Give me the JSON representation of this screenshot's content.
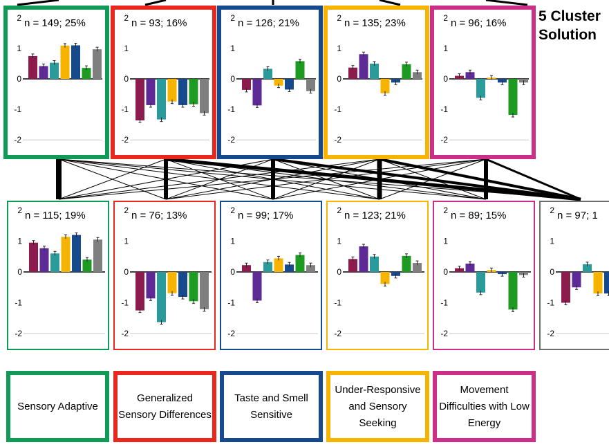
{
  "title": [
    "5 Cluster",
    "Solution"
  ],
  "colors": {
    "green": "#0f9a56",
    "red": "#e8281e",
    "blue": "#174a8c",
    "yellow": "#f6b400",
    "magenta": "#cc2f8a",
    "gray": "#6d6d6d"
  },
  "legend": [
    {
      "color": "green",
      "text": "Sensory Adaptive"
    },
    {
      "color": "red",
      "text": "Generalized Sensory Differences"
    },
    {
      "color": "blue",
      "text": "Taste and Smell Sensitive"
    },
    {
      "color": "yellow",
      "text": "Under-Responsive and Sensory Seeking"
    },
    {
      "color": "magenta",
      "text": "Movement Difficulties with Low Energy"
    }
  ],
  "chart_data": {
    "type": "bar",
    "bar_colors": [
      "#8c1b4e",
      "#5e2a96",
      "#2a9a9a",
      "#f6b400",
      "#174a8c",
      "#1c9a22",
      "#7f7f7f"
    ],
    "y_ticks": [
      "2",
      "1",
      "0",
      "-1",
      "-2"
    ],
    "ylim": [
      -2,
      2
    ],
    "panels_top": [
      {
        "label": "n = 149; 25%",
        "border": "green",
        "values": [
          0.75,
          0.42,
          0.53,
          1.09,
          1.1,
          0.36,
          0.97
        ]
      },
      {
        "label": "n = 93; 16%",
        "border": "red",
        "values": [
          -1.36,
          -0.86,
          -1.33,
          -0.74,
          -0.86,
          -0.83,
          -1.12
        ]
      },
      {
        "label": "n = 126; 21%",
        "border": "blue",
        "values": [
          -0.36,
          -0.87,
          0.33,
          -0.22,
          -0.35,
          0.58,
          -0.4
        ]
      },
      {
        "label": "n = 135; 23%",
        "border": "yellow",
        "values": [
          0.37,
          0.81,
          0.5,
          -0.47,
          -0.12,
          0.48,
          0.22
        ]
      },
      {
        "label": "n = 96; 16%",
        "border": "magenta",
        "values": [
          0.1,
          0.22,
          -0.62,
          0.04,
          -0.12,
          -1.18,
          -0.12
        ]
      }
    ],
    "panels_bottom": [
      {
        "label": "n = 115; 19%",
        "border": "green",
        "values": [
          0.95,
          0.77,
          0.6,
          1.14,
          1.2,
          0.4,
          1.05
        ]
      },
      {
        "label": "n = 76; 13%",
        "border": "red",
        "values": [
          -1.25,
          -0.86,
          -1.63,
          -0.69,
          -0.81,
          -0.95,
          -1.21
        ]
      },
      {
        "label": "n = 99; 17%",
        "border": "blue",
        "values": [
          0.22,
          -0.93,
          0.32,
          0.44,
          0.24,
          0.55,
          0.22
        ]
      },
      {
        "label": "n = 123; 21%",
        "border": "yellow",
        "values": [
          0.42,
          0.83,
          0.5,
          -0.39,
          -0.13,
          0.52,
          0.29
        ]
      },
      {
        "label": "n = 89; 15%",
        "border": "magenta",
        "values": [
          0.12,
          0.27,
          -0.67,
          0.06,
          -0.07,
          -1.22,
          -0.1
        ]
      },
      {
        "label": "n = 97; 1",
        "border": "gray",
        "values": [
          -1.0,
          -0.5,
          0.25,
          -0.7,
          -0.7
        ]
      }
    ]
  }
}
